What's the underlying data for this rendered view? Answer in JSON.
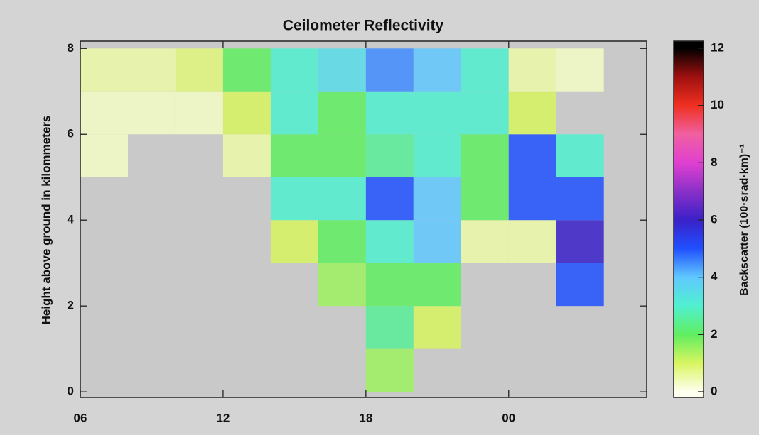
{
  "chart_data": {
    "type": "heatmap",
    "title": "Ceilometer Reflectivity",
    "y_label": "Height above ground in kilommeters",
    "colorbar_label": "Backscatter (100·srad·km)⁻¹",
    "x_edges": [
      6,
      8,
      10,
      12,
      14,
      16,
      18,
      20,
      22,
      24,
      26,
      28,
      30
    ],
    "y_edges": [
      0,
      1,
      2,
      3,
      4,
      5,
      6,
      7,
      8
    ],
    "z": [
      [
        null,
        null,
        null,
        null,
        null,
        null,
        1.5,
        null,
        null,
        null,
        null,
        null
      ],
      [
        null,
        null,
        null,
        null,
        null,
        null,
        2.5,
        1,
        null,
        null,
        null,
        null
      ],
      [
        null,
        null,
        null,
        null,
        null,
        1.5,
        2,
        2,
        null,
        null,
        5,
        null
      ],
      [
        null,
        null,
        null,
        null,
        1,
        2,
        3,
        4,
        0.5,
        0.5,
        6,
        null
      ],
      [
        null,
        null,
        null,
        null,
        3,
        3,
        5,
        4,
        2,
        5,
        5,
        null
      ],
      [
        0.3,
        null,
        null,
        0.5,
        2,
        2,
        2.5,
        3,
        2,
        5,
        3,
        null
      ],
      [
        0.3,
        0.3,
        0.3,
        1,
        3,
        2,
        3,
        3,
        3,
        1,
        null,
        null
      ],
      [
        0.5,
        0.5,
        0.8,
        2,
        3,
        3.5,
        4.5,
        4,
        3,
        0.5,
        0.3,
        null
      ]
    ],
    "xlim": [
      6,
      29.8
    ],
    "ylim": [
      -0.13,
      8.17
    ],
    "xticks": [
      {
        "value": 6,
        "label": "06"
      },
      12,
      18,
      {
        "value": 24,
        "label": "00"
      }
    ],
    "yticks": [
      0,
      2,
      4,
      6,
      8
    ],
    "zlim": [
      0,
      12
    ],
    "zticks": [
      0,
      2,
      4,
      6,
      8,
      10,
      12
    ],
    "colorscale": [
      "#fffff0",
      "#d8f560",
      "#60ee60",
      "#50f0d0",
      "#60c8ff",
      "#2050ff",
      "#3a20c8",
      "#8a30c8",
      "#e040d0",
      "#f060a0",
      "#f03020",
      "#a01010",
      "#000000"
    ],
    "missing_color": "#c9c9c9"
  }
}
